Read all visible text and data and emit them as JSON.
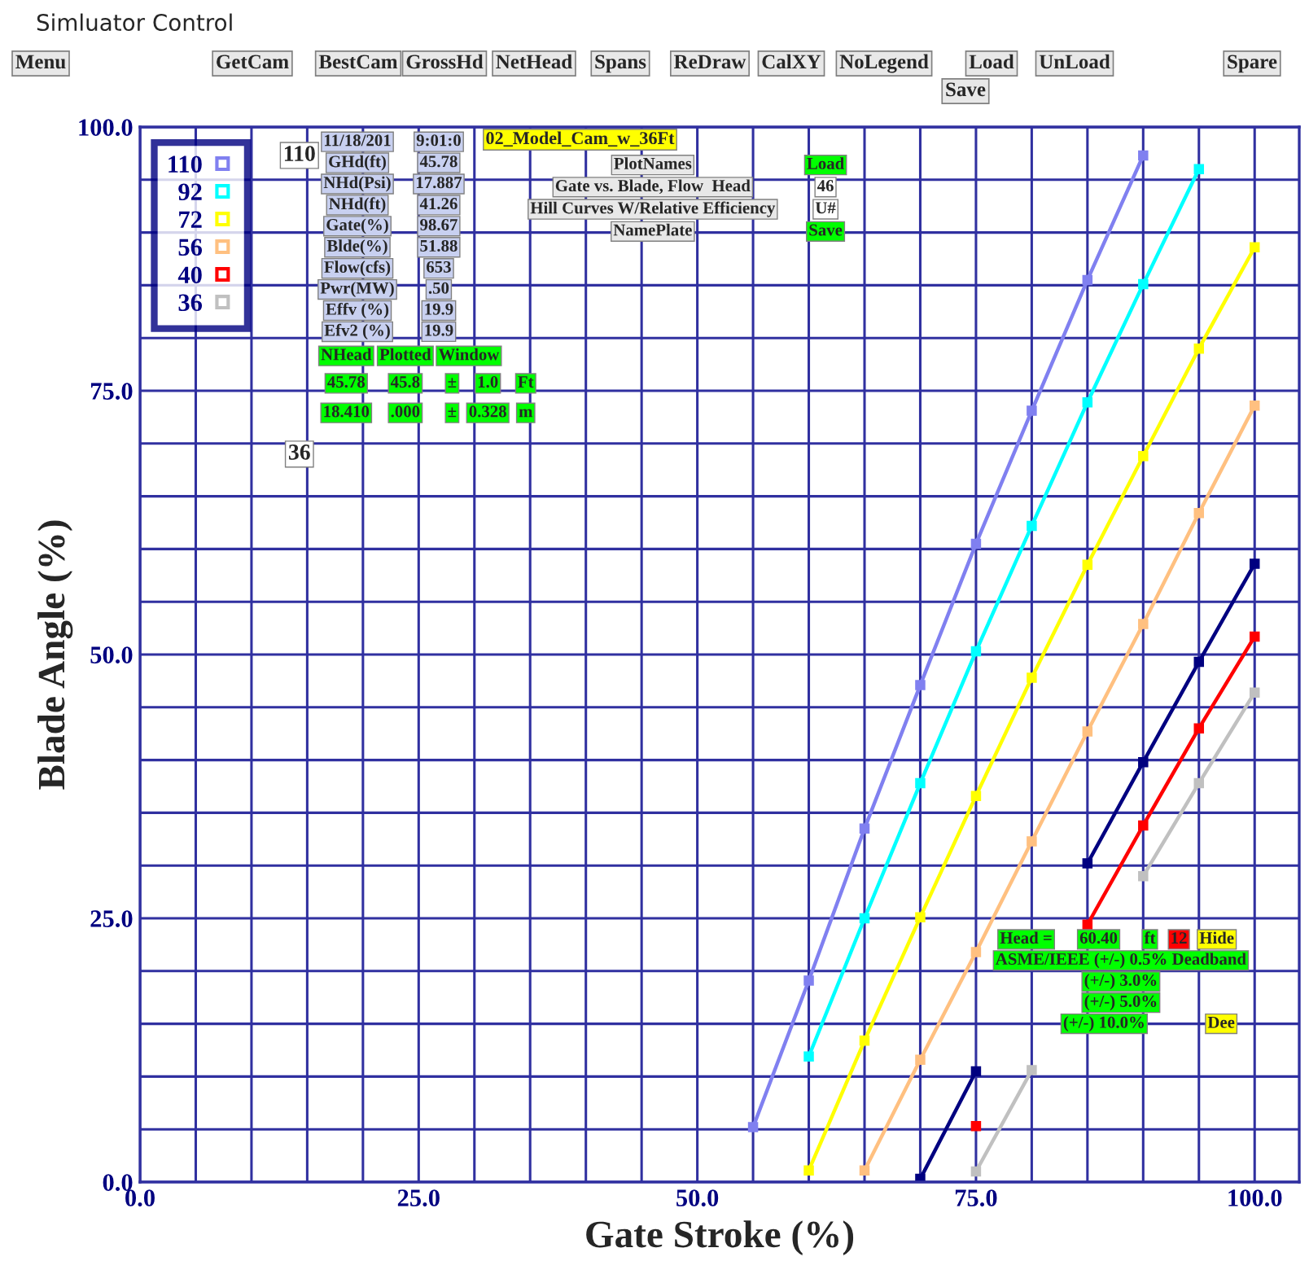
{
  "chart_data": {
    "type": "line",
    "xlabel": "Gate Stroke (%)",
    "ylabel": "Blade Angle (%)",
    "xlim": [
      0,
      104
    ],
    "ylim": [
      0,
      100
    ],
    "xticks": [
      {
        "value": 0,
        "label": "0.0"
      },
      {
        "value": 5,
        "label": null
      },
      {
        "value": 10,
        "label": null
      },
      {
        "value": 15,
        "label": null
      },
      {
        "value": 20,
        "label": null
      },
      {
        "value": 25,
        "label": "25.0"
      },
      {
        "value": 30,
        "label": null
      },
      {
        "value": 35,
        "label": null
      },
      {
        "value": 40,
        "label": null
      },
      {
        "value": 45,
        "label": null
      },
      {
        "value": 50,
        "label": "50.0"
      },
      {
        "value": 55,
        "label": null
      },
      {
        "value": 60,
        "label": null
      },
      {
        "value": 65,
        "label": null
      },
      {
        "value": 70,
        "label": null
      },
      {
        "value": 75,
        "label": "75.0"
      },
      {
        "value": 80,
        "label": null
      },
      {
        "value": 85,
        "label": null
      },
      {
        "value": 90,
        "label": null
      },
      {
        "value": 95,
        "label": null
      },
      {
        "value": 100,
        "label": "100.0"
      }
    ],
    "yticks": [
      {
        "value": 0,
        "label": "0.0"
      },
      {
        "value": 5,
        "label": null
      },
      {
        "value": 10,
        "label": null
      },
      {
        "value": 15,
        "label": null
      },
      {
        "value": 20,
        "label": null
      },
      {
        "value": 25,
        "label": "25.0"
      },
      {
        "value": 30,
        "label": null
      },
      {
        "value": 35,
        "label": null
      },
      {
        "value": 40,
        "label": null
      },
      {
        "value": 45,
        "label": null
      },
      {
        "value": 50,
        "label": "50.0"
      },
      {
        "value": 55,
        "label": null
      },
      {
        "value": 60,
        "label": null
      },
      {
        "value": 65,
        "label": null
      },
      {
        "value": 70,
        "label": null
      },
      {
        "value": 75,
        "label": "75.0"
      },
      {
        "value": 80,
        "label": null
      },
      {
        "value": 85,
        "label": null
      },
      {
        "value": 90,
        "label": null
      },
      {
        "value": 95,
        "label": null
      },
      {
        "value": 100,
        "label": "100.0"
      }
    ],
    "grid": true,
    "legend": "top left",
    "marker": "square",
    "line_style": "solid",
    "series": [
      {
        "name": "110",
        "color": "#8080f0",
        "x": [
          55,
          60,
          65,
          70,
          75,
          80,
          85,
          90
        ],
        "values": [
          5.2,
          19.1,
          33.5,
          47.1,
          60.5,
          73.1,
          85.5,
          97.3
        ]
      },
      {
        "name": "92",
        "color": "#00ffff",
        "x": [
          60,
          65,
          70,
          75,
          80,
          85,
          90,
          95
        ],
        "values": [
          11.9,
          25.0,
          37.8,
          50.3,
          62.2,
          73.9,
          85.1,
          96.0
        ]
      },
      {
        "name": "72",
        "color": "#ffff00",
        "x": [
          60,
          65,
          70,
          75,
          80,
          85,
          90,
          95,
          100
        ],
        "values": [
          1.1,
          13.4,
          25.1,
          36.6,
          47.8,
          58.5,
          68.8,
          79.0,
          88.6
        ]
      },
      {
        "name": "56",
        "color": "#ffc080",
        "x": [
          65,
          70,
          75,
          80,
          85,
          90,
          95,
          100
        ],
        "values": [
          1.1,
          11.6,
          21.8,
          32.3,
          42.7,
          52.9,
          63.4,
          73.6
        ]
      },
      {
        "color": "#000080",
        "x": [
          70,
          75,
          80,
          85,
          90,
          95,
          100
        ],
        "values": [
          0.3,
          10.5,
          null,
          30.2,
          39.8,
          49.3,
          58.6
        ]
      },
      {
        "name": "40",
        "color": "#ff0000",
        "x": [
          75,
          80,
          85,
          90,
          95,
          100
        ],
        "values": [
          5.3,
          null,
          24.4,
          33.8,
          43.0,
          51.7
        ]
      },
      {
        "name": "36",
        "color": "#c0c0c0",
        "x": [
          75,
          80,
          85,
          90,
          95,
          100
        ],
        "values": [
          1.0,
          10.6,
          null,
          29.0,
          37.8,
          46.4
        ]
      }
    ],
    "annotations": [
      "Simluator Control",
      "Menu",
      "GetCam",
      "BestCam",
      "GrossHd",
      "NetHead",
      "Spans",
      "ReDraw",
      "CalXY",
      "NoLegend",
      "Load",
      "UnLoad",
      "Spare",
      "Save",
      "11/18/201",
      "9:01:0",
      "GHd(ft)",
      "45.78",
      "NHd(Psi)",
      "17.887",
      "NHd(ft)",
      "41.26",
      "Gate(%)",
      "98.67",
      "Blde(%)",
      "51.88",
      "Flow(cfs)",
      "653",
      "Pwr(MW)",
      ".50",
      "Effv (%)",
      "19.9",
      "Efv2 (%)",
      "19.9",
      "NHead",
      "Plotted",
      "Window",
      "45.78",
      "45.8",
      "±",
      "1.0",
      "Ft",
      "18.410",
      ".000",
      "±",
      "0.328",
      "m",
      "110",
      "36",
      "02_Model_Cam_w_36Ft",
      "PlotNames",
      "Load",
      "Gate vs. Blade, Flow  Head",
      "46",
      "Hill Curves W/Relative Efficiency",
      "U#",
      "NamePlate",
      "Save",
      "Head =",
      "60.40",
      "ft",
      "12",
      "Hide",
      "ASME/IEEE (+/-) 0.5% Deadband",
      "(+/-) 3.0%",
      "(+/-) 5.0%",
      "(+/-) 10.0%",
      "Dee"
    ]
  }
}
